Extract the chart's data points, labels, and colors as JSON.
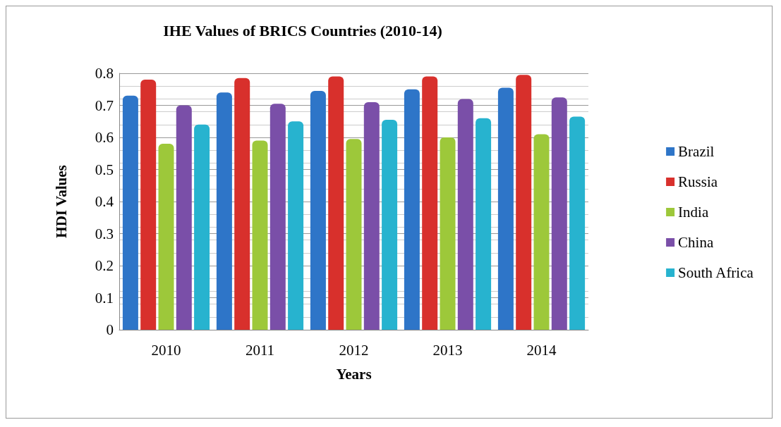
{
  "chart_data": {
    "type": "bar",
    "title": "IHE Values of BRICS Countries (2010-14)",
    "xlabel": "Years",
    "ylabel": "HDI Values",
    "categories": [
      "2010",
      "2011",
      "2012",
      "2013",
      "2014"
    ],
    "series": [
      {
        "name": "Brazil",
        "color": "#2e75c8",
        "values": [
          0.73,
          0.74,
          0.745,
          0.75,
          0.755
        ]
      },
      {
        "name": "Russia",
        "color": "#d8302c",
        "values": [
          0.78,
          0.785,
          0.79,
          0.79,
          0.795
        ]
      },
      {
        "name": "India",
        "color": "#9dc83a",
        "values": [
          0.58,
          0.59,
          0.595,
          0.6,
          0.61
        ]
      },
      {
        "name": "China",
        "color": "#7a4fa8",
        "values": [
          0.7,
          0.705,
          0.71,
          0.72,
          0.725
        ]
      },
      {
        "name": "South Africa",
        "color": "#27b3cf",
        "values": [
          0.64,
          0.65,
          0.655,
          0.66,
          0.665
        ]
      }
    ],
    "ylim": [
      0,
      0.8
    ],
    "yticks": [
      0,
      0.1,
      0.2,
      0.3,
      0.4,
      0.5,
      0.6,
      0.7,
      0.8
    ],
    "grid": true,
    "legend": "right"
  }
}
